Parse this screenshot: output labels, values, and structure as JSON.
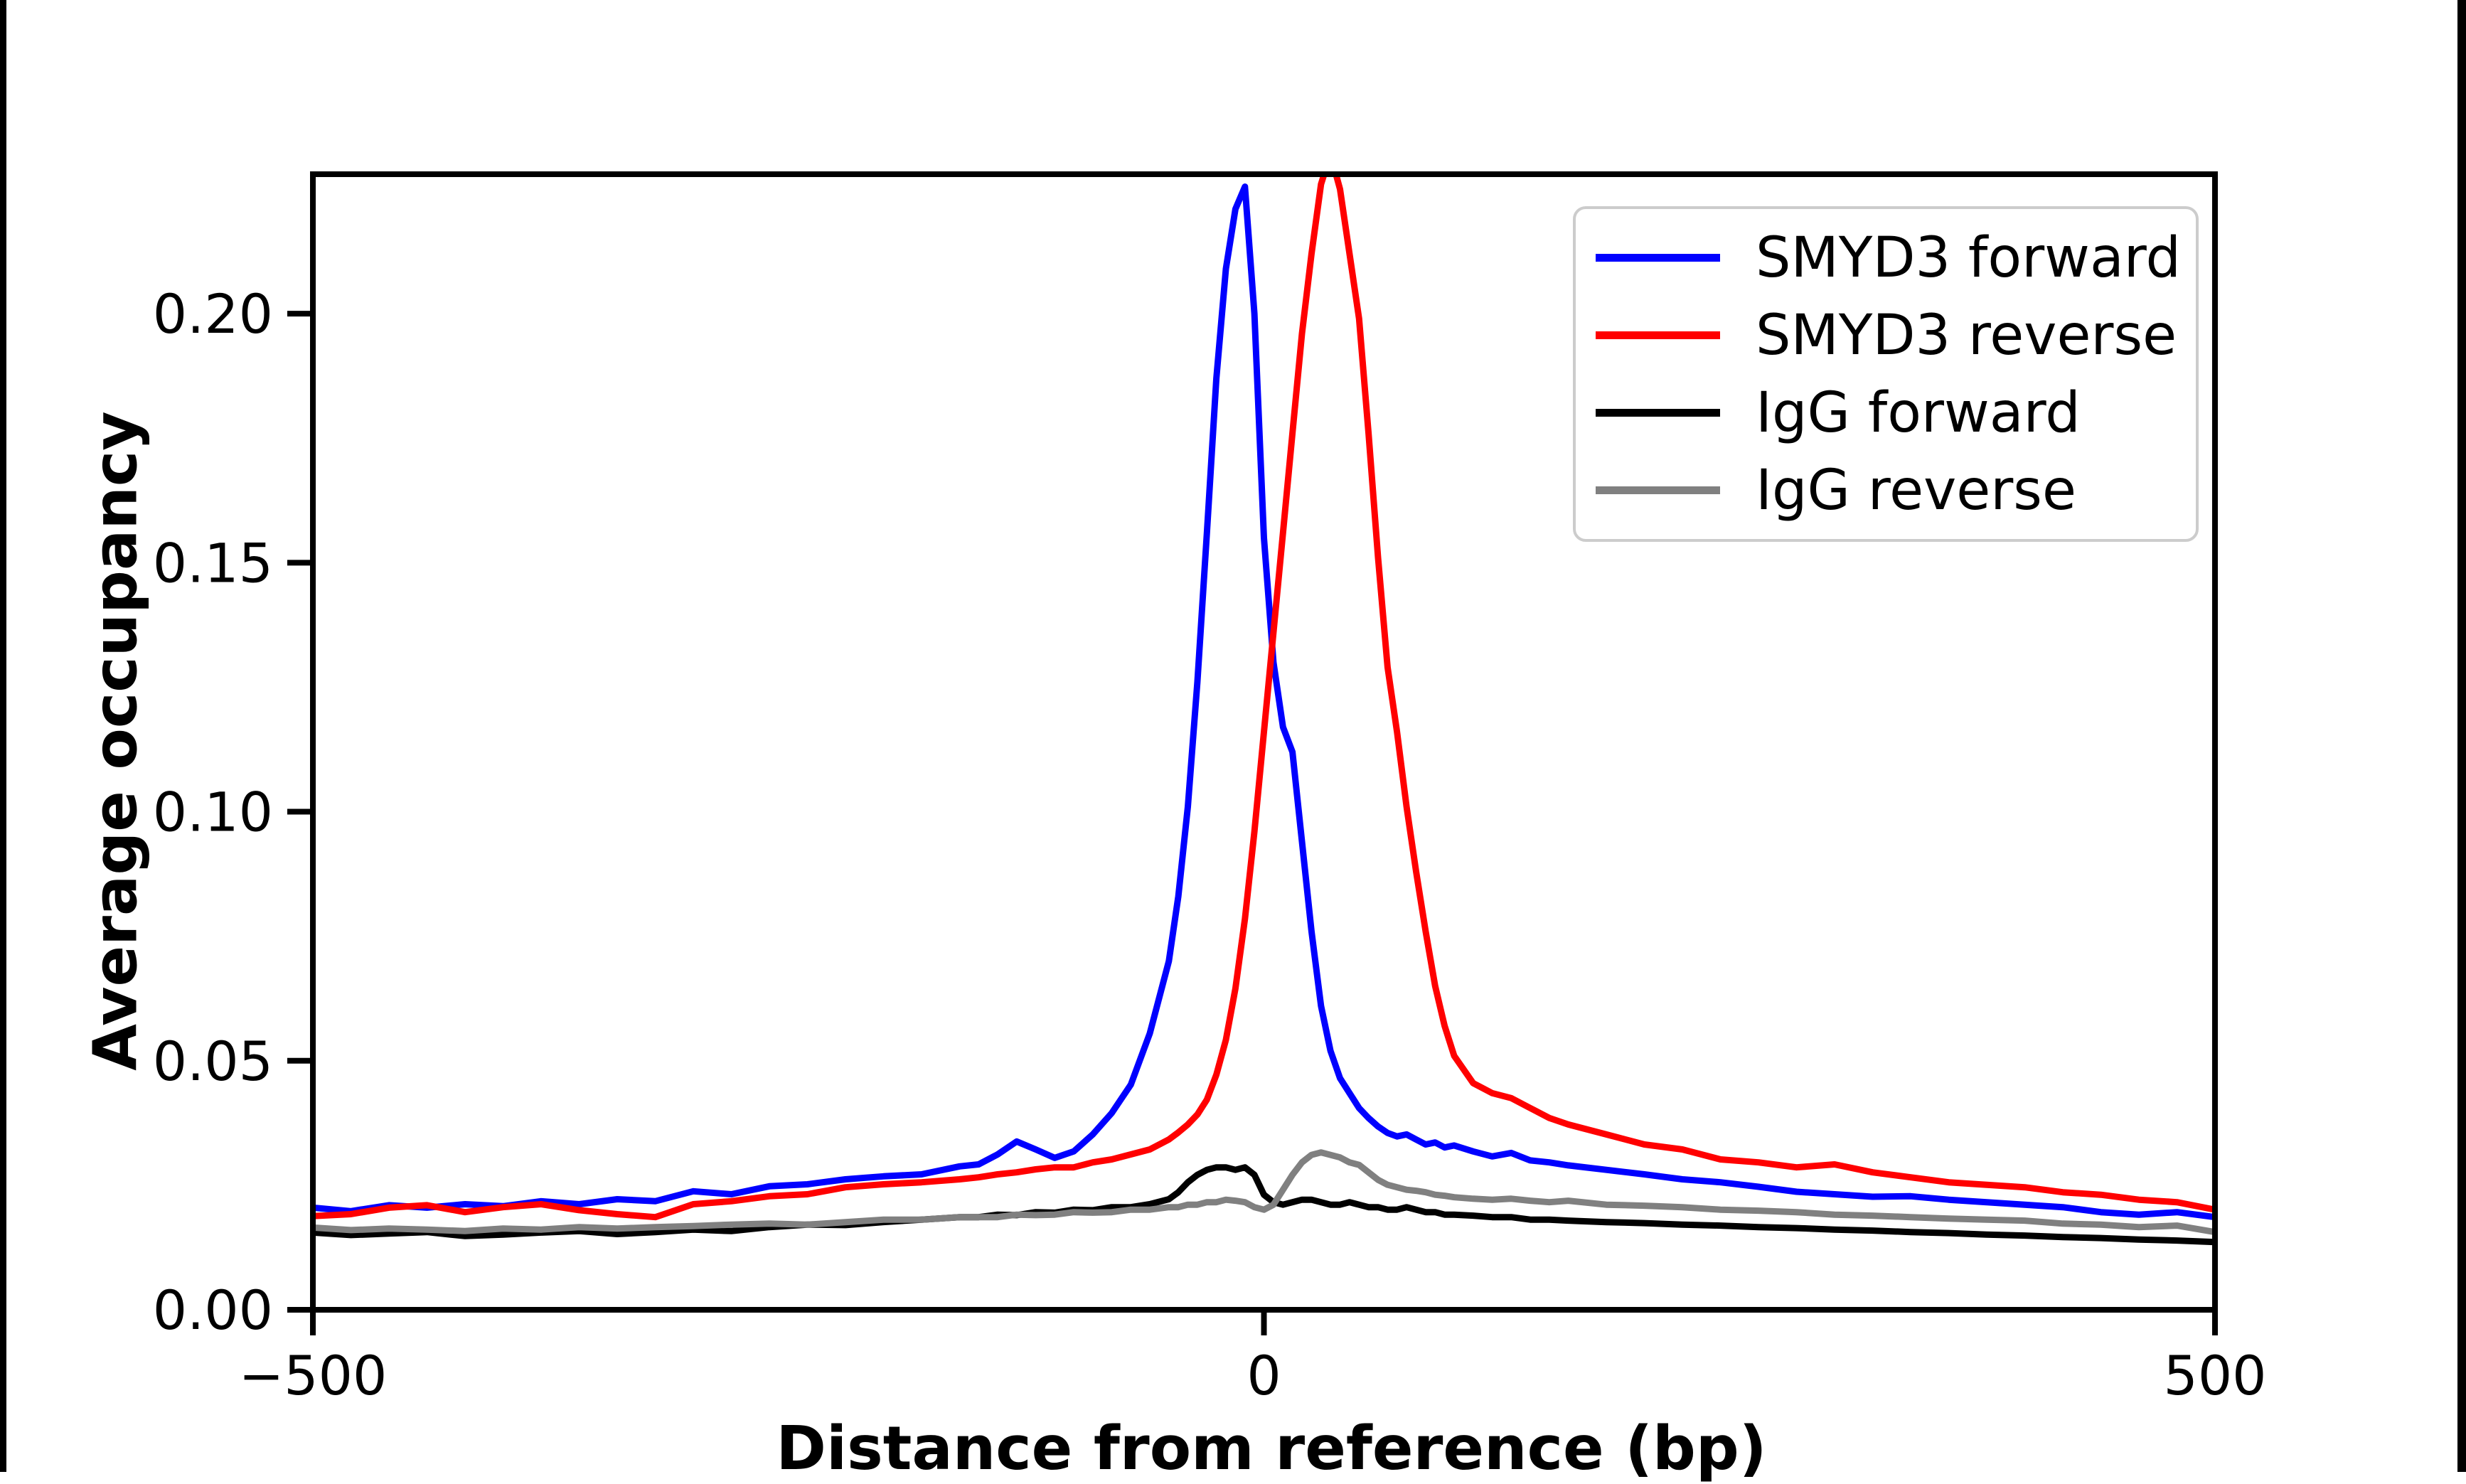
{
  "figure": {
    "background": "#ffffff",
    "edge_bar_color": "#000000"
  },
  "chart_data": {
    "type": "line",
    "title": "",
    "xlabel": "Distance from reference (bp)",
    "ylabel": "Average occupancy",
    "xlim": [
      -500,
      500
    ],
    "ylim": [
      0,
      0.228
    ],
    "grid": false,
    "legend_position": "upper right",
    "axis_color": "#000000",
    "xticks": {
      "values": [
        -500,
        0,
        500
      ],
      "labels": [
        "−500",
        "0",
        "500"
      ]
    },
    "yticks": {
      "values": [
        0,
        0.05,
        0.1,
        0.15,
        0.2
      ],
      "labels": [
        "0.00",
        "0.05",
        "0.10",
        "0.15",
        "0.20"
      ]
    },
    "x": [
      -500,
      -480,
      -460,
      -440,
      -420,
      -400,
      -380,
      -360,
      -340,
      -320,
      -300,
      -280,
      -260,
      -240,
      -220,
      -200,
      -180,
      -160,
      -150,
      -140,
      -130,
      -120,
      -110,
      -100,
      -90,
      -80,
      -70,
      -60,
      -50,
      -45,
      -40,
      -35,
      -30,
      -25,
      -20,
      -15,
      -10,
      -5,
      0,
      5,
      10,
      15,
      20,
      25,
      30,
      35,
      40,
      45,
      50,
      55,
      60,
      65,
      70,
      75,
      80,
      85,
      90,
      95,
      100,
      110,
      120,
      130,
      140,
      150,
      160,
      180,
      200,
      220,
      240,
      260,
      280,
      300,
      320,
      340,
      360,
      380,
      400,
      420,
      440,
      460,
      480,
      500
    ],
    "series": [
      {
        "name": "SMYD3 forward",
        "color": "#0000ff",
        "values": [
          0.0205,
          0.0198,
          0.021,
          0.0205,
          0.0212,
          0.0208,
          0.0218,
          0.0212,
          0.0222,
          0.0218,
          0.0238,
          0.0232,
          0.0248,
          0.0252,
          0.0262,
          0.0268,
          0.0272,
          0.0288,
          0.0292,
          0.0312,
          0.0338,
          0.0322,
          0.0305,
          0.0318,
          0.0352,
          0.0395,
          0.0452,
          0.0555,
          0.07,
          0.083,
          0.101,
          0.126,
          0.156,
          0.187,
          0.209,
          0.221,
          0.2255,
          0.2,
          0.155,
          0.13,
          0.117,
          0.112,
          0.094,
          0.076,
          0.061,
          0.052,
          0.0465,
          0.0435,
          0.0405,
          0.0385,
          0.0368,
          0.0355,
          0.0348,
          0.0352,
          0.0342,
          0.0332,
          0.0336,
          0.0326,
          0.033,
          0.0318,
          0.0308,
          0.0315,
          0.03,
          0.0296,
          0.029,
          0.0281,
          0.0272,
          0.0262,
          0.0256,
          0.0247,
          0.0237,
          0.0232,
          0.0227,
          0.0228,
          0.0221,
          0.0216,
          0.0211,
          0.0206,
          0.0196,
          0.0191,
          0.0196,
          0.0186
        ]
      },
      {
        "name": "SMYD3 reverse",
        "color": "#ff0000",
        "values": [
          0.0188,
          0.0192,
          0.0205,
          0.021,
          0.0196,
          0.0206,
          0.0212,
          0.02,
          0.0192,
          0.0186,
          0.0212,
          0.0218,
          0.0228,
          0.0232,
          0.0246,
          0.0252,
          0.0256,
          0.0262,
          0.0266,
          0.0272,
          0.0276,
          0.0282,
          0.0286,
          0.0286,
          0.0296,
          0.0302,
          0.0312,
          0.0322,
          0.0342,
          0.0356,
          0.0372,
          0.0392,
          0.0422,
          0.0472,
          0.0542,
          0.0645,
          0.0785,
          0.096,
          0.116,
          0.136,
          0.156,
          0.176,
          0.196,
          0.212,
          0.226,
          0.232,
          0.225,
          0.212,
          0.199,
          0.176,
          0.151,
          0.129,
          0.116,
          0.101,
          0.088,
          0.076,
          0.065,
          0.057,
          0.051,
          0.0455,
          0.0435,
          0.0425,
          0.0405,
          0.0385,
          0.0372,
          0.0352,
          0.0332,
          0.0322,
          0.0302,
          0.0296,
          0.0286,
          0.0292,
          0.0276,
          0.0266,
          0.0256,
          0.0251,
          0.0246,
          0.0236,
          0.0231,
          0.0221,
          0.0216,
          0.0201
        ]
      },
      {
        "name": "IgG forward",
        "color": "#000000",
        "values": [
          0.0155,
          0.015,
          0.0153,
          0.0156,
          0.0148,
          0.0151,
          0.0155,
          0.0158,
          0.0152,
          0.0156,
          0.0161,
          0.0158,
          0.0166,
          0.0171,
          0.017,
          0.0176,
          0.0181,
          0.0186,
          0.0186,
          0.0191,
          0.019,
          0.0196,
          0.0195,
          0.0201,
          0.02,
          0.0206,
          0.0206,
          0.0212,
          0.0222,
          0.0236,
          0.0256,
          0.0271,
          0.0281,
          0.0286,
          0.0286,
          0.0281,
          0.0286,
          0.0271,
          0.0231,
          0.0216,
          0.0211,
          0.0216,
          0.0221,
          0.0221,
          0.0216,
          0.0211,
          0.0211,
          0.0216,
          0.0211,
          0.0206,
          0.0206,
          0.0201,
          0.0201,
          0.0206,
          0.0201,
          0.0196,
          0.0196,
          0.0191,
          0.0191,
          0.0189,
          0.0186,
          0.0186,
          0.0181,
          0.0181,
          0.0179,
          0.0176,
          0.0174,
          0.0171,
          0.0169,
          0.0166,
          0.0164,
          0.0161,
          0.0159,
          0.0156,
          0.0154,
          0.0151,
          0.0149,
          0.0146,
          0.0144,
          0.0141,
          0.0139,
          0.0136
        ]
      },
      {
        "name": "IgG reverse",
        "color": "#808080",
        "values": [
          0.0165,
          0.016,
          0.0163,
          0.0161,
          0.0158,
          0.0163,
          0.0161,
          0.0166,
          0.0163,
          0.0166,
          0.0168,
          0.0171,
          0.0173,
          0.0171,
          0.0176,
          0.0181,
          0.0181,
          0.0186,
          0.0186,
          0.0186,
          0.0191,
          0.019,
          0.0191,
          0.0196,
          0.0195,
          0.0196,
          0.0201,
          0.0201,
          0.0206,
          0.0206,
          0.0211,
          0.0211,
          0.0216,
          0.0216,
          0.0221,
          0.0219,
          0.0216,
          0.0206,
          0.0201,
          0.0211,
          0.0241,
          0.0271,
          0.0296,
          0.0311,
          0.0316,
          0.0311,
          0.0306,
          0.0296,
          0.0291,
          0.0276,
          0.0261,
          0.0251,
          0.0246,
          0.0241,
          0.0239,
          0.0236,
          0.0231,
          0.0229,
          0.0226,
          0.0223,
          0.0221,
          0.0223,
          0.0219,
          0.0216,
          0.0219,
          0.0211,
          0.0209,
          0.0206,
          0.0201,
          0.0199,
          0.0196,
          0.0191,
          0.0189,
          0.0186,
          0.0183,
          0.0181,
          0.0179,
          0.0173,
          0.0171,
          0.0166,
          0.0169,
          0.0156
        ]
      }
    ]
  }
}
